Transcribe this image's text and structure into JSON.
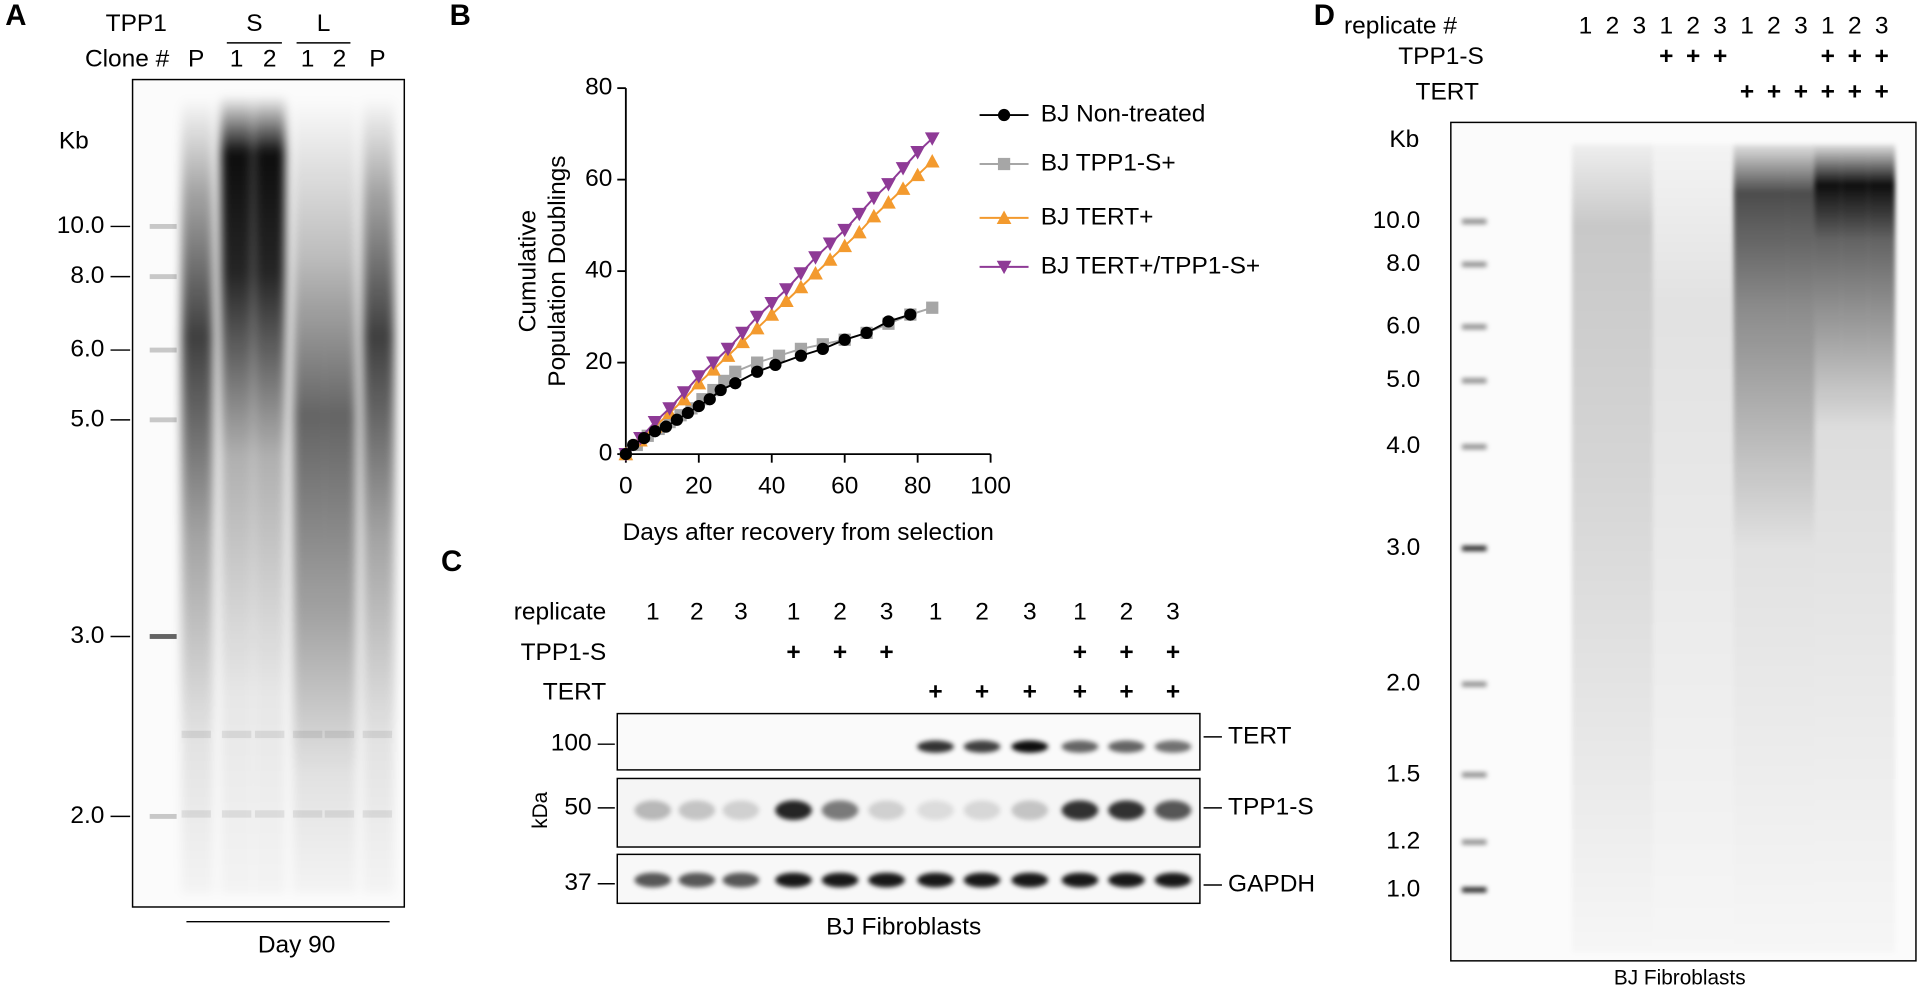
{
  "panel_a": {
    "letter": "A",
    "row_labels": [
      "TPP1",
      "Clone #"
    ],
    "groups": [
      "S",
      "L"
    ],
    "lanes": [
      "P",
      "1",
      "2",
      "1",
      "2",
      "P"
    ],
    "unit": "Kb",
    "markers": [
      "10.0",
      "8.0",
      "6.0",
      "5.0",
      "3.0",
      "2.0"
    ],
    "footer": "Day 90"
  },
  "chart_data": {
    "type": "line",
    "panel_letter": "B",
    "x_label": "Days after recovery from selection",
    "y_label": [
      "Cumulative",
      "Population Doublings"
    ],
    "xlim": [
      0,
      100
    ],
    "xticks": [
      0,
      20,
      40,
      60,
      80,
      100
    ],
    "ylim": [
      0,
      80
    ],
    "yticks": [
      0,
      20,
      40,
      60,
      80
    ],
    "legend": "top-right",
    "series": [
      {
        "name": "BJ Non-treated",
        "color": "#000000",
        "marker": "circle",
        "x": [
          0,
          2,
          5,
          8,
          11,
          14,
          17,
          20,
          23,
          26,
          30,
          36,
          41,
          48,
          54,
          60,
          66,
          72,
          78
        ],
        "values": [
          0,
          2,
          3.5,
          5,
          6,
          7.5,
          9,
          10.5,
          12,
          14,
          15.5,
          18,
          19.5,
          21.5,
          23,
          25,
          26.5,
          29,
          30.5
        ]
      },
      {
        "name": "BJ TPP1-S+",
        "color": "#a6a6a6",
        "marker": "square",
        "x": [
          0,
          3,
          6,
          9,
          12,
          15,
          18,
          21,
          24,
          27,
          30,
          36,
          42,
          48,
          54,
          60,
          66,
          72,
          78,
          84
        ],
        "values": [
          0,
          2,
          4,
          5.5,
          7,
          8.5,
          10,
          12,
          14,
          16,
          18,
          20,
          21.5,
          23,
          24,
          25,
          26.5,
          28.5,
          30.5,
          32
        ]
      },
      {
        "name": "BJ TERT+",
        "color": "#f39a2e",
        "marker": "triangle-up",
        "x": [
          0,
          4,
          8,
          12,
          16,
          20,
          24,
          28,
          32,
          36,
          40,
          44,
          48,
          52,
          56,
          60,
          64,
          68,
          72,
          76,
          80,
          84
        ],
        "values": [
          0,
          3,
          6,
          9,
          12,
          15.5,
          18.5,
          21.5,
          24.5,
          27.5,
          30.5,
          33.5,
          36.5,
          39.5,
          42.5,
          45.5,
          48.5,
          52,
          55,
          58,
          61,
          64
        ]
      },
      {
        "name": "BJ TERT+/TPP1-S+",
        "color": "#8e3a96",
        "marker": "triangle-down",
        "x": [
          0,
          4,
          8,
          12,
          16,
          20,
          24,
          28,
          32,
          36,
          40,
          44,
          48,
          52,
          56,
          60,
          64,
          68,
          72,
          76,
          80,
          84
        ],
        "values": [
          0,
          3.5,
          7,
          10,
          13.5,
          17,
          20,
          23,
          26.5,
          30,
          33,
          36,
          39.5,
          43,
          46,
          49,
          52.5,
          56,
          59,
          62.5,
          66,
          69
        ]
      }
    ]
  },
  "panel_c": {
    "letter": "C",
    "rows": [
      {
        "label": "replicate",
        "cells": [
          "1",
          "2",
          "3",
          "1",
          "2",
          "3",
          "1",
          "2",
          "3",
          "1",
          "2",
          "3"
        ]
      },
      {
        "label": "TPP1-S",
        "cells": [
          null,
          null,
          null,
          "+",
          "+",
          "+",
          null,
          null,
          null,
          "+",
          "+",
          "+"
        ]
      },
      {
        "label": "TERT",
        "cells": [
          null,
          null,
          null,
          null,
          null,
          null,
          "+",
          "+",
          "+",
          "+",
          "+",
          "+"
        ]
      }
    ],
    "size_unit": "kDa",
    "sizes": [
      "100",
      "50",
      "37"
    ],
    "bands": [
      "TERT",
      "TPP1-S",
      "GAPDH"
    ],
    "footer": "BJ Fibroblasts"
  },
  "panel_d": {
    "letter": "D",
    "rows": [
      {
        "label": "replicate #",
        "cells": [
          "1",
          "2",
          "3",
          "1",
          "2",
          "3",
          "1",
          "2",
          "3",
          "1",
          "2",
          "3"
        ]
      },
      {
        "label": "TPP1-S",
        "cells": [
          null,
          null,
          null,
          "+",
          "+",
          "+",
          null,
          null,
          null,
          "+",
          "+",
          "+"
        ]
      },
      {
        "label": "TERT",
        "cells": [
          null,
          null,
          null,
          null,
          null,
          null,
          "+",
          "+",
          "+",
          "+",
          "+",
          "+"
        ]
      }
    ],
    "unit": "Kb",
    "markers": [
      "10.0",
      "8.0",
      "6.0",
      "5.0",
      "4.0",
      "3.0",
      "2.0",
      "1.5",
      "1.2",
      "1.0"
    ],
    "footer": "BJ Fibroblasts"
  }
}
